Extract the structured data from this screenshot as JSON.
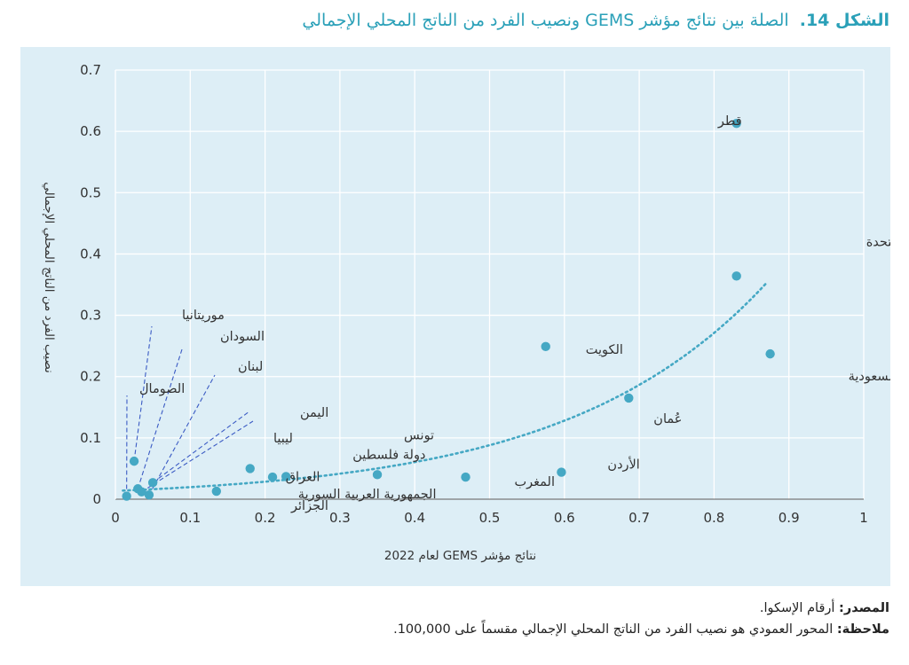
{
  "figure": {
    "number": "الشكل 14.",
    "title": "الصلة بين نتائج مؤشر GEMS ونصيب الفرد من الناتج المحلي الإجمالي"
  },
  "footer": {
    "source_label": "المصدر:",
    "source_text": "أرقام الإسكوا.",
    "note_label": "ملاحظة:",
    "note_text": "المحور العمودي هو نصيب الفرد من الناتج المحلي الإجمالي مقسماً على 100,000."
  },
  "chart_data": {
    "type": "scatter",
    "xlabel": "نتائج مؤشر GEMS لعام 2022",
    "ylabel": "نصيب الفرد من الناتج المحلي الإجمالي",
    "xlim": [
      0,
      1
    ],
    "ylim": [
      0,
      0.7
    ],
    "x_ticks": [
      "0",
      "0.1",
      "0.2",
      "0.3",
      "0.4",
      "0.5",
      "0.6",
      "0.7",
      "0.8",
      "0.9",
      "1"
    ],
    "y_ticks": [
      "0",
      "0.1",
      "0.2",
      "0.3",
      "0.4",
      "0.5",
      "0.6",
      "0.7"
    ],
    "grid": true,
    "marker_color": "#45a8c4",
    "trend_color": "#45a8c4",
    "leader_color": "#3b5bc4",
    "points": [
      {
        "name": "قطر",
        "x": 0.83,
        "y": 0.613
      },
      {
        "name": "الإمارات العربية المتحدة",
        "x": 0.83,
        "y": 0.364
      },
      {
        "name": "المملكة العربية السعودية",
        "x": 0.875,
        "y": 0.237
      },
      {
        "name": "الكويت",
        "x": 0.575,
        "y": 0.249
      },
      {
        "name": "عُمان",
        "x": 0.686,
        "y": 0.165
      },
      {
        "name": "الأردن",
        "x": 0.596,
        "y": 0.044
      },
      {
        "name": "المغرب",
        "x": 0.468,
        "y": 0.036
      },
      {
        "name": "تونس",
        "x": 0.35,
        "y": 0.04
      },
      {
        "name": "دولة فلسطين",
        "x": 0.228,
        "y": 0.037
      },
      {
        "name": "العراق",
        "x": 0.18,
        "y": 0.05
      },
      {
        "name": "الجزائر",
        "x": 0.21,
        "y": 0.036
      },
      {
        "name": "الجمهورية العربية السورية",
        "x": 0.135,
        "y": 0.013
      },
      {
        "name": "ليبيا",
        "x": 0.05,
        "y": 0.027
      },
      {
        "name": "اليمن",
        "x": 0.035,
        "y": 0.012
      },
      {
        "name": "لبنان",
        "x": 0.045,
        "y": 0.007
      },
      {
        "name": "السودان",
        "x": 0.03,
        "y": 0.017
      },
      {
        "name": "موريتانيا",
        "x": 0.025,
        "y": 0.062
      },
      {
        "name": "الصومال",
        "x": 0.015,
        "y": 0.005
      }
    ],
    "trend": {
      "type": "exponential",
      "a": 0.0135,
      "b": 3.75,
      "x_from": 0.01,
      "x_to": 0.87
    }
  }
}
